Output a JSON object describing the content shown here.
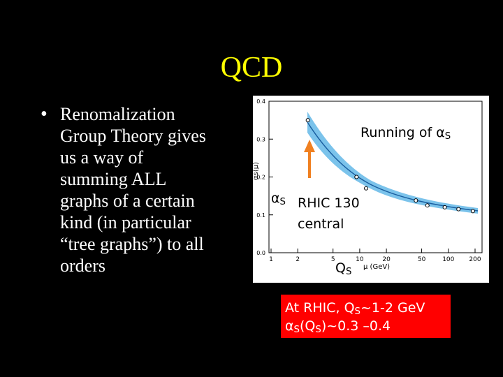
{
  "title": "QCD",
  "bullet": {
    "lines": [
      "Renomalization",
      "Group Theory gives",
      "us a way of",
      "summing ALL",
      "graphs of a certain",
      "kind (in particular",
      "“tree graphs”) to all",
      "orders"
    ]
  },
  "figure": {
    "y_label": "αs(μ)",
    "x_label": "μ (GeV)",
    "xlim": [
      1,
      200
    ],
    "ylim": [
      0,
      0.4
    ],
    "log_x": true,
    "xticks": [
      1,
      2,
      5,
      10,
      20,
      50,
      100,
      200
    ],
    "yticks": [
      {
        "value": 0,
        "label": "0.0"
      },
      0.1,
      0.2,
      0.3,
      0.4
    ],
    "points": {
      "x": [
        2.6,
        9.2,
        11.8,
        43,
        58,
        91,
        130,
        189
      ],
      "y": [
        0.35,
        0.2,
        0.17,
        0.138,
        0.125,
        0.12,
        0.115,
        0.11
      ]
    },
    "running": [
      "Running of α",
      "S"
    ],
    "alpha_label": [
      "α",
      "S"
    ],
    "rhic": [
      "RHIC 130",
      "central"
    ],
    "qs": [
      "Q",
      "S"
    ]
  },
  "callout": {
    "line1": [
      "At RHIC, Q",
      "S",
      "~1-2 GeV"
    ],
    "line2": [
      "α",
      "S",
      "(Q",
      "S",
      ")~0.3 –0.4"
    ]
  }
}
